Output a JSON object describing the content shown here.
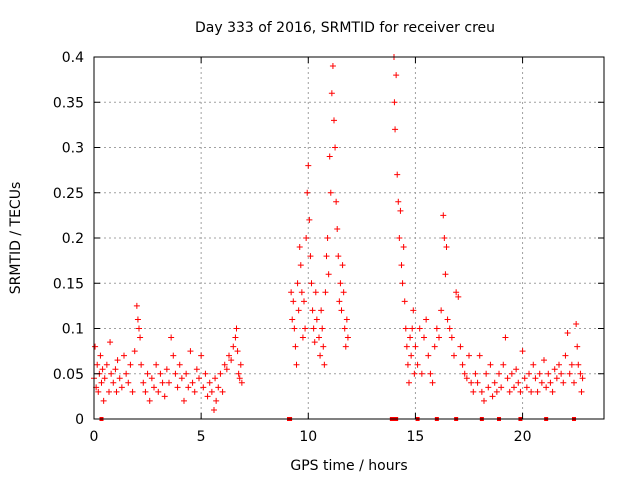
{
  "chart_data": {
    "type": "scatter",
    "title": "Day 333 of 2016, SRMTID for receiver creu",
    "xlabel": "GPS time / hours",
    "ylabel": "SRMTID / TECUs",
    "xlim": [
      0,
      23.8
    ],
    "ylim": [
      0,
      0.4
    ],
    "xticks": [
      0,
      5,
      10,
      15,
      20
    ],
    "yticks": [
      0,
      0.05,
      0.1,
      0.15,
      0.2,
      0.25,
      0.3,
      0.35,
      0.4
    ],
    "xtick_labels": [
      "0",
      "5",
      "10",
      "15",
      "20"
    ],
    "ytick_labels": [
      "0",
      "0.05",
      "0.1",
      "0.15",
      "0.2",
      "0.25",
      "0.3",
      "0.35",
      "0.4"
    ],
    "grid": true,
    "marker": "+",
    "color": "#ff0000",
    "series": [
      {
        "name": "SRMTID",
        "points": [
          [
            0.0,
            0.045
          ],
          [
            0.05,
            0.08
          ],
          [
            0.1,
            0.035
          ],
          [
            0.15,
            0.06
          ],
          [
            0.2,
            0.03
          ],
          [
            0.25,
            0.05
          ],
          [
            0.3,
            0.07
          ],
          [
            0.35,
            0.04
          ],
          [
            0.4,
            0.055
          ],
          [
            0.45,
            0.02
          ],
          [
            0.5,
            0.045
          ],
          [
            0.6,
            0.06
          ],
          [
            0.7,
            0.03
          ],
          [
            0.75,
            0.085
          ],
          [
            0.8,
            0.05
          ],
          [
            0.9,
            0.04
          ],
          [
            1.0,
            0.055
          ],
          [
            1.05,
            0.03
          ],
          [
            1.1,
            0.065
          ],
          [
            1.2,
            0.045
          ],
          [
            1.3,
            0.035
          ],
          [
            1.4,
            0.07
          ],
          [
            1.5,
            0.05
          ],
          [
            1.6,
            0.04
          ],
          [
            1.7,
            0.06
          ],
          [
            1.8,
            0.03
          ],
          [
            1.9,
            0.075
          ],
          [
            2.0,
            0.125
          ],
          [
            2.05,
            0.11
          ],
          [
            2.1,
            0.1
          ],
          [
            2.15,
            0.09
          ],
          [
            2.2,
            0.06
          ],
          [
            2.3,
            0.04
          ],
          [
            2.4,
            0.03
          ],
          [
            2.5,
            0.05
          ],
          [
            2.6,
            0.02
          ],
          [
            2.7,
            0.045
          ],
          [
            2.8,
            0.035
          ],
          [
            2.9,
            0.06
          ],
          [
            3.0,
            0.03
          ],
          [
            3.1,
            0.05
          ],
          [
            3.2,
            0.04
          ],
          [
            3.3,
            0.025
          ],
          [
            3.4,
            0.055
          ],
          [
            3.5,
            0.04
          ],
          [
            3.6,
            0.09
          ],
          [
            3.7,
            0.07
          ],
          [
            3.8,
            0.05
          ],
          [
            3.9,
            0.035
          ],
          [
            4.0,
            0.06
          ],
          [
            4.1,
            0.045
          ],
          [
            4.2,
            0.02
          ],
          [
            4.3,
            0.05
          ],
          [
            4.4,
            0.035
          ],
          [
            4.5,
            0.075
          ],
          [
            4.6,
            0.04
          ],
          [
            4.7,
            0.03
          ],
          [
            4.8,
            0.055
          ],
          [
            4.9,
            0.045
          ],
          [
            5.0,
            0.07
          ],
          [
            5.1,
            0.035
          ],
          [
            5.2,
            0.05
          ],
          [
            5.3,
            0.025
          ],
          [
            5.4,
            0.04
          ],
          [
            5.5,
            0.03
          ],
          [
            5.6,
            0.01
          ],
          [
            5.65,
            0.045
          ],
          [
            5.7,
            0.02
          ],
          [
            5.8,
            0.035
          ],
          [
            5.9,
            0.05
          ],
          [
            6.0,
            0.03
          ],
          [
            6.1,
            0.06
          ],
          [
            6.2,
            0.055
          ],
          [
            6.3,
            0.07
          ],
          [
            6.4,
            0.065
          ],
          [
            6.5,
            0.08
          ],
          [
            6.6,
            0.09
          ],
          [
            6.65,
            0.1
          ],
          [
            6.7,
            0.075
          ],
          [
            6.75,
            0.05
          ],
          [
            6.8,
            0.045
          ],
          [
            6.85,
            0.06
          ],
          [
            6.9,
            0.04
          ],
          [
            9.2,
            0.14
          ],
          [
            9.25,
            0.11
          ],
          [
            9.3,
            0.13
          ],
          [
            9.35,
            0.1
          ],
          [
            9.4,
            0.08
          ],
          [
            9.45,
            0.06
          ],
          [
            9.5,
            0.15
          ],
          [
            9.55,
            0.12
          ],
          [
            9.6,
            0.19
          ],
          [
            9.65,
            0.17
          ],
          [
            9.7,
            0.14
          ],
          [
            9.75,
            0.09
          ],
          [
            9.8,
            0.13
          ],
          [
            9.85,
            0.1
          ],
          [
            9.9,
            0.2
          ],
          [
            9.95,
            0.25
          ],
          [
            10.0,
            0.28
          ],
          [
            10.05,
            0.22
          ],
          [
            10.1,
            0.18
          ],
          [
            10.15,
            0.15
          ],
          [
            10.2,
            0.12
          ],
          [
            10.25,
            0.1
          ],
          [
            10.3,
            0.085
          ],
          [
            10.35,
            0.14
          ],
          [
            10.4,
            0.11
          ],
          [
            10.5,
            0.09
          ],
          [
            10.55,
            0.07
          ],
          [
            10.6,
            0.12
          ],
          [
            10.65,
            0.1
          ],
          [
            10.7,
            0.08
          ],
          [
            10.75,
            0.06
          ],
          [
            10.8,
            0.14
          ],
          [
            10.85,
            0.18
          ],
          [
            10.9,
            0.2
          ],
          [
            10.95,
            0.16
          ],
          [
            11.0,
            0.29
          ],
          [
            11.05,
            0.25
          ],
          [
            11.1,
            0.36
          ],
          [
            11.15,
            0.39
          ],
          [
            11.2,
            0.33
          ],
          [
            11.25,
            0.3
          ],
          [
            11.3,
            0.24
          ],
          [
            11.35,
            0.21
          ],
          [
            11.4,
            0.18
          ],
          [
            11.45,
            0.13
          ],
          [
            11.5,
            0.15
          ],
          [
            11.55,
            0.12
          ],
          [
            11.6,
            0.17
          ],
          [
            11.65,
            0.14
          ],
          [
            11.7,
            0.1
          ],
          [
            11.75,
            0.08
          ],
          [
            11.8,
            0.11
          ],
          [
            11.85,
            0.09
          ],
          [
            14.0,
            0.4
          ],
          [
            14.02,
            0.35
          ],
          [
            14.05,
            0.32
          ],
          [
            14.1,
            0.38
          ],
          [
            14.15,
            0.27
          ],
          [
            14.2,
            0.24
          ],
          [
            14.25,
            0.2
          ],
          [
            14.3,
            0.23
          ],
          [
            14.35,
            0.17
          ],
          [
            14.4,
            0.15
          ],
          [
            14.45,
            0.19
          ],
          [
            14.5,
            0.13
          ],
          [
            14.55,
            0.1
          ],
          [
            14.6,
            0.08
          ],
          [
            14.65,
            0.06
          ],
          [
            14.7,
            0.04
          ],
          [
            14.75,
            0.09
          ],
          [
            14.8,
            0.07
          ],
          [
            14.85,
            0.1
          ],
          [
            14.9,
            0.12
          ],
          [
            14.95,
            0.05
          ],
          [
            15.0,
            0.08
          ],
          [
            15.1,
            0.06
          ],
          [
            15.2,
            0.1
          ],
          [
            15.3,
            0.05
          ],
          [
            15.4,
            0.09
          ],
          [
            15.5,
            0.11
          ],
          [
            15.6,
            0.07
          ],
          [
            15.7,
            0.05
          ],
          [
            15.8,
            0.04
          ],
          [
            15.9,
            0.08
          ],
          [
            16.0,
            0.1
          ],
          [
            16.1,
            0.09
          ],
          [
            16.2,
            0.12
          ],
          [
            16.3,
            0.225
          ],
          [
            16.35,
            0.2
          ],
          [
            16.4,
            0.16
          ],
          [
            16.45,
            0.19
          ],
          [
            16.5,
            0.11
          ],
          [
            16.6,
            0.1
          ],
          [
            16.7,
            0.09
          ],
          [
            16.8,
            0.07
          ],
          [
            16.9,
            0.14
          ],
          [
            17.0,
            0.135
          ],
          [
            17.1,
            0.08
          ],
          [
            17.2,
            0.06
          ],
          [
            17.3,
            0.05
          ],
          [
            17.4,
            0.045
          ],
          [
            17.5,
            0.07
          ],
          [
            17.6,
            0.04
          ],
          [
            17.7,
            0.03
          ],
          [
            17.8,
            0.05
          ],
          [
            17.9,
            0.04
          ],
          [
            18.0,
            0.07
          ],
          [
            18.1,
            0.03
          ],
          [
            18.2,
            0.02
          ],
          [
            18.3,
            0.05
          ],
          [
            18.4,
            0.035
          ],
          [
            18.5,
            0.06
          ],
          [
            18.6,
            0.025
          ],
          [
            18.7,
            0.04
          ],
          [
            18.8,
            0.03
          ],
          [
            18.9,
            0.05
          ],
          [
            19.0,
            0.035
          ],
          [
            19.1,
            0.06
          ],
          [
            19.2,
            0.09
          ],
          [
            19.3,
            0.045
          ],
          [
            19.4,
            0.03
          ],
          [
            19.5,
            0.05
          ],
          [
            19.6,
            0.035
          ],
          [
            19.7,
            0.055
          ],
          [
            19.8,
            0.04
          ],
          [
            19.9,
            0.03
          ],
          [
            20.0,
            0.075
          ],
          [
            20.1,
            0.045
          ],
          [
            20.2,
            0.035
          ],
          [
            20.3,
            0.05
          ],
          [
            20.4,
            0.03
          ],
          [
            20.5,
            0.06
          ],
          [
            20.6,
            0.045
          ],
          [
            20.7,
            0.03
          ],
          [
            20.8,
            0.05
          ],
          [
            20.9,
            0.04
          ],
          [
            21.0,
            0.065
          ],
          [
            21.1,
            0.035
          ],
          [
            21.2,
            0.05
          ],
          [
            21.3,
            0.04
          ],
          [
            21.4,
            0.03
          ],
          [
            21.5,
            0.055
          ],
          [
            21.6,
            0.045
          ],
          [
            21.7,
            0.06
          ],
          [
            21.8,
            0.05
          ],
          [
            21.9,
            0.04
          ],
          [
            22.0,
            0.07
          ],
          [
            22.1,
            0.095
          ],
          [
            22.2,
            0.05
          ],
          [
            22.3,
            0.06
          ],
          [
            22.4,
            0.04
          ],
          [
            22.5,
            0.105
          ],
          [
            22.55,
            0.08
          ],
          [
            22.6,
            0.06
          ],
          [
            22.7,
            0.05
          ],
          [
            22.75,
            0.03
          ],
          [
            22.8,
            0.045
          ]
        ]
      }
    ],
    "baseline_marks_x": [
      0.35,
      9.1,
      9.15,
      13.9,
      13.95,
      14.1,
      15.1,
      16.0,
      16.9,
      18.1,
      18.9,
      19.9,
      21.1,
      22.4
    ]
  }
}
